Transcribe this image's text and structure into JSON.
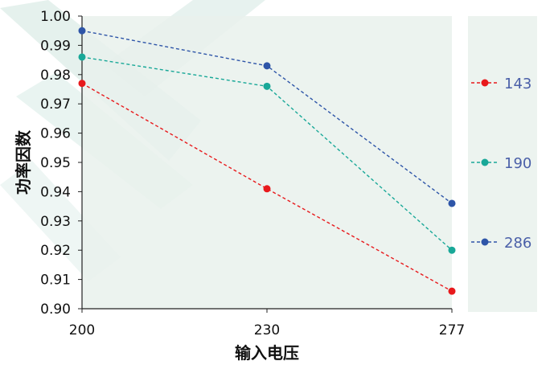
{
  "chart_data": {
    "type": "line",
    "x": [
      "200",
      "230",
      "277"
    ],
    "xlabel": "输入电压",
    "ylabel": "功率因数",
    "ylim": [
      0.9,
      1.0
    ],
    "yticks": [
      "0.90",
      "0.91",
      "0.92",
      "0.93",
      "0.94",
      "0.95",
      "0.96",
      "0.97",
      "0.98",
      "0.99",
      "1.00"
    ],
    "grid": false,
    "legend_position": "right",
    "series": [
      {
        "name": "143",
        "values": [
          0.977,
          0.941,
          0.906
        ],
        "color": "#e8191c"
      },
      {
        "name": "190",
        "values": [
          0.986,
          0.976,
          0.92
        ],
        "color": "#19a898"
      },
      {
        "name": "286",
        "values": [
          0.995,
          0.983,
          0.936
        ],
        "color": "#2e55a8"
      }
    ],
    "legend_text_color": "#4a5fa8",
    "plot_background": "#e9f1ec",
    "watermark_color": "#cfe6df"
  }
}
